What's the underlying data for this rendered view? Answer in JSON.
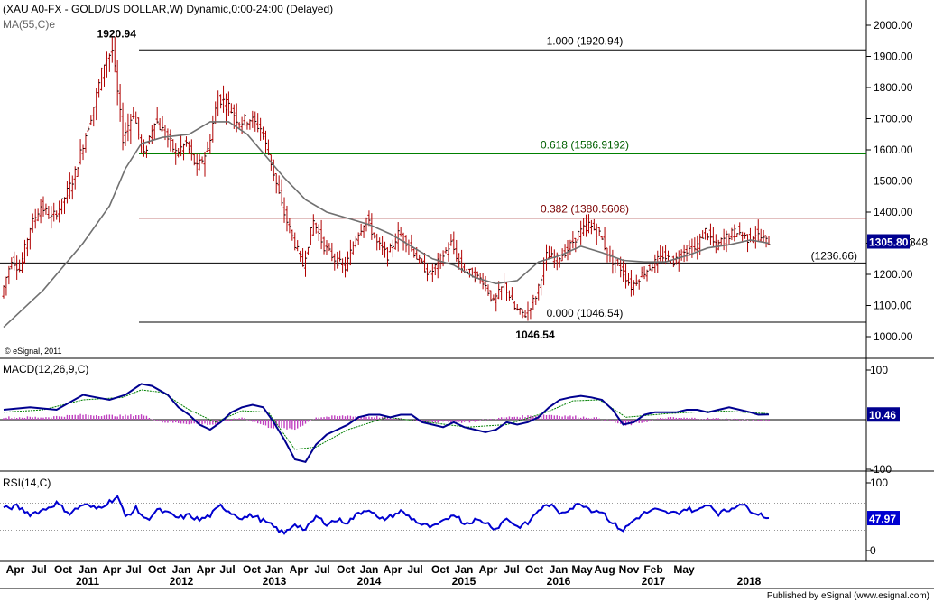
{
  "header": {
    "title": "(XAU A0-FX - GOLD/US DOLLAR,W) Dynamic,0:00-24:00 (Delayed)",
    "ma_label": "MA(55,C)e",
    "copyright": "© eSignal, 2011",
    "published": "Published by eSignal (www.esignal.com)"
  },
  "colors": {
    "candle": "#b00000",
    "ma": "#707070",
    "fib_top": "#000000",
    "fib_618": "#008000",
    "fib_382": "#8b0000",
    "macd": "#000090",
    "signal": "#008000",
    "histogram": "#c040c0",
    "rsi": "#0000d0",
    "price_badge": "#000090"
  },
  "chart_data": [
    {
      "type": "candlestick",
      "name": "price",
      "yticks": [
        "2000.00",
        "1900.00",
        "1800.00",
        "1700.00",
        "1600.00",
        "1500.00",
        "1400.00",
        "1300.00",
        "1200.00",
        "1100.00",
        "1000.00"
      ],
      "ylim": [
        965,
        2100
      ],
      "current_price": "1305.80",
      "current_suffix": "348",
      "x_months": [
        "Apr",
        "Jul",
        "Oct",
        "Jan",
        "Apr",
        "Jul",
        "Oct",
        "Jan",
        "Apr",
        "Jul",
        "Oct",
        "Jan",
        "Apr",
        "Jul",
        "Oct",
        "Jan",
        "Apr",
        "Jul",
        "Oct",
        "Jan",
        "Apr",
        "Jul",
        "Oct",
        "Jan",
        "May",
        "Aug",
        "Nov",
        "Feb",
        "May"
      ],
      "x_years": [
        "2011",
        "2012",
        "2013",
        "2014",
        "2015",
        "2016",
        "2017",
        "2018"
      ],
      "price_points": [
        [
          0,
          1130
        ],
        [
          8,
          1250
        ],
        [
          14,
          1215
        ],
        [
          22,
          1350
        ],
        [
          30,
          1420
        ],
        [
          38,
          1380
        ],
        [
          45,
          1420
        ],
        [
          55,
          1510
        ],
        [
          62,
          1620
        ],
        [
          70,
          1740
        ],
        [
          78,
          1880
        ],
        [
          84,
          1920
        ],
        [
          92,
          1640
        ],
        [
          100,
          1720
        ],
        [
          108,
          1580
        ],
        [
          116,
          1700
        ],
        [
          124,
          1650
        ],
        [
          132,
          1590
        ],
        [
          140,
          1620
        ],
        [
          148,
          1540
        ],
        [
          156,
          1600
        ],
        [
          164,
          1770
        ],
        [
          172,
          1740
        ],
        [
          180,
          1690
        ],
        [
          188,
          1700
        ],
        [
          196,
          1670
        ],
        [
          204,
          1560
        ],
        [
          212,
          1420
        ],
        [
          220,
          1320
        ],
        [
          228,
          1230
        ],
        [
          236,
          1370
        ],
        [
          244,
          1290
        ],
        [
          252,
          1250
        ],
        [
          260,
          1220
        ],
        [
          268,
          1320
        ],
        [
          276,
          1380
        ],
        [
          284,
          1300
        ],
        [
          292,
          1260
        ],
        [
          300,
          1330
        ],
        [
          308,
          1300
        ],
        [
          316,
          1240
        ],
        [
          324,
          1200
        ],
        [
          332,
          1250
        ],
        [
          340,
          1300
        ],
        [
          348,
          1220
        ],
        [
          356,
          1200
        ],
        [
          364,
          1180
        ],
        [
          372,
          1110
        ],
        [
          380,
          1170
        ],
        [
          388,
          1090
        ],
        [
          396,
          1070
        ],
        [
          404,
          1130
        ],
        [
          412,
          1260
        ],
        [
          420,
          1250
        ],
        [
          428,
          1280
        ],
        [
          436,
          1330
        ],
        [
          444,
          1360
        ],
        [
          452,
          1330
        ],
        [
          460,
          1250
        ],
        [
          468,
          1220
        ],
        [
          476,
          1160
        ],
        [
          484,
          1200
        ],
        [
          492,
          1230
        ],
        [
          500,
          1260
        ],
        [
          508,
          1240
        ],
        [
          516,
          1280
        ],
        [
          524,
          1280
        ],
        [
          532,
          1340
        ],
        [
          540,
          1290
        ],
        [
          548,
          1320
        ],
        [
          556,
          1340
        ],
        [
          564,
          1315
        ],
        [
          570,
          1330
        ],
        [
          578,
          1305
        ]
      ],
      "ma_points": [
        [
          0,
          1030
        ],
        [
          30,
          1150
        ],
        [
          60,
          1300
        ],
        [
          80,
          1420
        ],
        [
          92,
          1540
        ],
        [
          104,
          1620
        ],
        [
          120,
          1640
        ],
        [
          140,
          1650
        ],
        [
          156,
          1690
        ],
        [
          170,
          1690
        ],
        [
          184,
          1650
        ],
        [
          198,
          1580
        ],
        [
          212,
          1510
        ],
        [
          228,
          1440
        ],
        [
          244,
          1400
        ],
        [
          260,
          1380
        ],
        [
          276,
          1360
        ],
        [
          292,
          1330
        ],
        [
          308,
          1290
        ],
        [
          324,
          1250
        ],
        [
          340,
          1230
        ],
        [
          356,
          1190
        ],
        [
          372,
          1170
        ],
        [
          388,
          1180
        ],
        [
          404,
          1240
        ],
        [
          420,
          1260
        ],
        [
          436,
          1290
        ],
        [
          452,
          1270
        ],
        [
          468,
          1245
        ],
        [
          484,
          1240
        ],
        [
          500,
          1240
        ],
        [
          516,
          1260
        ],
        [
          532,
          1285
        ],
        [
          548,
          1295
        ],
        [
          564,
          1310
        ],
        [
          578,
          1300
        ]
      ],
      "annotations": {
        "high_label": "1920.94",
        "low_label": "1046.54",
        "fib_100": "1.000 (1920.94)",
        "fib_618": "0.618 (1586.9192)",
        "fib_382": "0.382 (1380.5608)",
        "fib_0": "0.000 (1046.54)",
        "support": "(1236.66)"
      },
      "levels": {
        "fib_100": 1920.94,
        "fib_618": 1586.9192,
        "fib_382": 1380.5608,
        "fib_0": 1046.54,
        "support": 1236.66
      }
    },
    {
      "type": "line",
      "name": "MACD",
      "label": "MACD(12,26,9,C)",
      "yticks": [
        "100",
        "-100"
      ],
      "ylim": [
        -110,
        125
      ],
      "current_value": "10.46",
      "macd_points": [
        [
          0,
          20
        ],
        [
          20,
          25
        ],
        [
          40,
          20
        ],
        [
          60,
          50
        ],
        [
          70,
          45
        ],
        [
          80,
          40
        ],
        [
          92,
          50
        ],
        [
          104,
          72
        ],
        [
          112,
          68
        ],
        [
          124,
          50
        ],
        [
          132,
          25
        ],
        [
          140,
          10
        ],
        [
          148,
          -10
        ],
        [
          156,
          -20
        ],
        [
          164,
          -5
        ],
        [
          172,
          15
        ],
        [
          180,
          25
        ],
        [
          188,
          30
        ],
        [
          196,
          25
        ],
        [
          204,
          -5
        ],
        [
          212,
          -40
        ],
        [
          220,
          -80
        ],
        [
          228,
          -85
        ],
        [
          236,
          -50
        ],
        [
          244,
          -30
        ],
        [
          252,
          -20
        ],
        [
          260,
          -10
        ],
        [
          268,
          5
        ],
        [
          276,
          10
        ],
        [
          284,
          10
        ],
        [
          292,
          5
        ],
        [
          300,
          10
        ],
        [
          308,
          10
        ],
        [
          316,
          -5
        ],
        [
          324,
          -10
        ],
        [
          332,
          -15
        ],
        [
          340,
          -5
        ],
        [
          348,
          -15
        ],
        [
          356,
          -20
        ],
        [
          364,
          -25
        ],
        [
          372,
          -20
        ],
        [
          380,
          -5
        ],
        [
          388,
          -10
        ],
        [
          396,
          -5
        ],
        [
          404,
          5
        ],
        [
          412,
          25
        ],
        [
          420,
          40
        ],
        [
          428,
          45
        ],
        [
          436,
          48
        ],
        [
          444,
          45
        ],
        [
          452,
          40
        ],
        [
          460,
          20
        ],
        [
          468,
          -10
        ],
        [
          476,
          -5
        ],
        [
          484,
          10
        ],
        [
          492,
          15
        ],
        [
          500,
          15
        ],
        [
          508,
          15
        ],
        [
          516,
          20
        ],
        [
          524,
          20
        ],
        [
          532,
          15
        ],
        [
          540,
          20
        ],
        [
          548,
          25
        ],
        [
          556,
          20
        ],
        [
          564,
          15
        ],
        [
          570,
          10
        ],
        [
          578,
          10.46
        ]
      ],
      "signal_points": [
        [
          0,
          15
        ],
        [
          30,
          20
        ],
        [
          60,
          40
        ],
        [
          90,
          45
        ],
        [
          104,
          60
        ],
        [
          120,
          55
        ],
        [
          140,
          20
        ],
        [
          160,
          -5
        ],
        [
          180,
          18
        ],
        [
          200,
          15
        ],
        [
          220,
          -60
        ],
        [
          236,
          -55
        ],
        [
          260,
          -20
        ],
        [
          290,
          5
        ],
        [
          320,
          -5
        ],
        [
          350,
          -15
        ],
        [
          380,
          -10
        ],
        [
          410,
          15
        ],
        [
          430,
          38
        ],
        [
          450,
          40
        ],
        [
          470,
          5
        ],
        [
          500,
          12
        ],
        [
          540,
          18
        ],
        [
          578,
          12
        ]
      ],
      "hist_points": [
        [
          0,
          5
        ],
        [
          30,
          5
        ],
        [
          60,
          10
        ],
        [
          90,
          8
        ],
        [
          104,
          10
        ],
        [
          120,
          -5
        ],
        [
          140,
          -8
        ],
        [
          160,
          -10
        ],
        [
          180,
          5
        ],
        [
          200,
          -15
        ],
        [
          220,
          -20
        ],
        [
          236,
          5
        ],
        [
          260,
          8
        ],
        [
          290,
          5
        ],
        [
          320,
          -5
        ],
        [
          350,
          -5
        ],
        [
          380,
          5
        ],
        [
          410,
          10
        ],
        [
          430,
          7
        ],
        [
          450,
          3
        ],
        [
          470,
          -12
        ],
        [
          500,
          4
        ],
        [
          540,
          2
        ],
        [
          578,
          -2
        ]
      ]
    },
    {
      "type": "line",
      "name": "RSI",
      "label": "RSI(14,C)",
      "yticks": [
        "100",
        "0"
      ],
      "ylim": [
        0,
        100
      ],
      "current_value": "47.97",
      "rsi_points": [
        [
          0,
          62
        ],
        [
          10,
          65
        ],
        [
          20,
          54
        ],
        [
          30,
          60
        ],
        [
          40,
          70
        ],
        [
          50,
          55
        ],
        [
          60,
          68
        ],
        [
          70,
          62
        ],
        [
          80,
          72
        ],
        [
          86,
          80
        ],
        [
          92,
          50
        ],
        [
          100,
          62
        ],
        [
          108,
          45
        ],
        [
          116,
          60
        ],
        [
          124,
          55
        ],
        [
          132,
          48
        ],
        [
          140,
          52
        ],
        [
          148,
          45
        ],
        [
          156,
          52
        ],
        [
          164,
          66
        ],
        [
          172,
          56
        ],
        [
          180,
          48
        ],
        [
          188,
          52
        ],
        [
          196,
          44
        ],
        [
          204,
          35
        ],
        [
          212,
          25
        ],
        [
          220,
          40
        ],
        [
          228,
          30
        ],
        [
          236,
          50
        ],
        [
          244,
          40
        ],
        [
          252,
          45
        ],
        [
          260,
          42
        ],
        [
          268,
          55
        ],
        [
          276,
          62
        ],
        [
          284,
          45
        ],
        [
          292,
          50
        ],
        [
          300,
          58
        ],
        [
          308,
          48
        ],
        [
          316,
          38
        ],
        [
          324,
          34
        ],
        [
          332,
          42
        ],
        [
          340,
          55
        ],
        [
          348,
          40
        ],
        [
          356,
          45
        ],
        [
          364,
          42
        ],
        [
          372,
          32
        ],
        [
          380,
          48
        ],
        [
          388,
          35
        ],
        [
          396,
          40
        ],
        [
          404,
          60
        ],
        [
          412,
          68
        ],
        [
          420,
          56
        ],
        [
          428,
          62
        ],
        [
          436,
          70
        ],
        [
          444,
          60
        ],
        [
          452,
          58
        ],
        [
          460,
          40
        ],
        [
          468,
          30
        ],
        [
          476,
          45
        ],
        [
          484,
          55
        ],
        [
          492,
          60
        ],
        [
          500,
          56
        ],
        [
          508,
          55
        ],
        [
          516,
          62
        ],
        [
          524,
          58
        ],
        [
          532,
          70
        ],
        [
          540,
          55
        ],
        [
          548,
          60
        ],
        [
          556,
          70
        ],
        [
          564,
          60
        ],
        [
          570,
          55
        ],
        [
          578,
          47.97
        ]
      ]
    }
  ]
}
